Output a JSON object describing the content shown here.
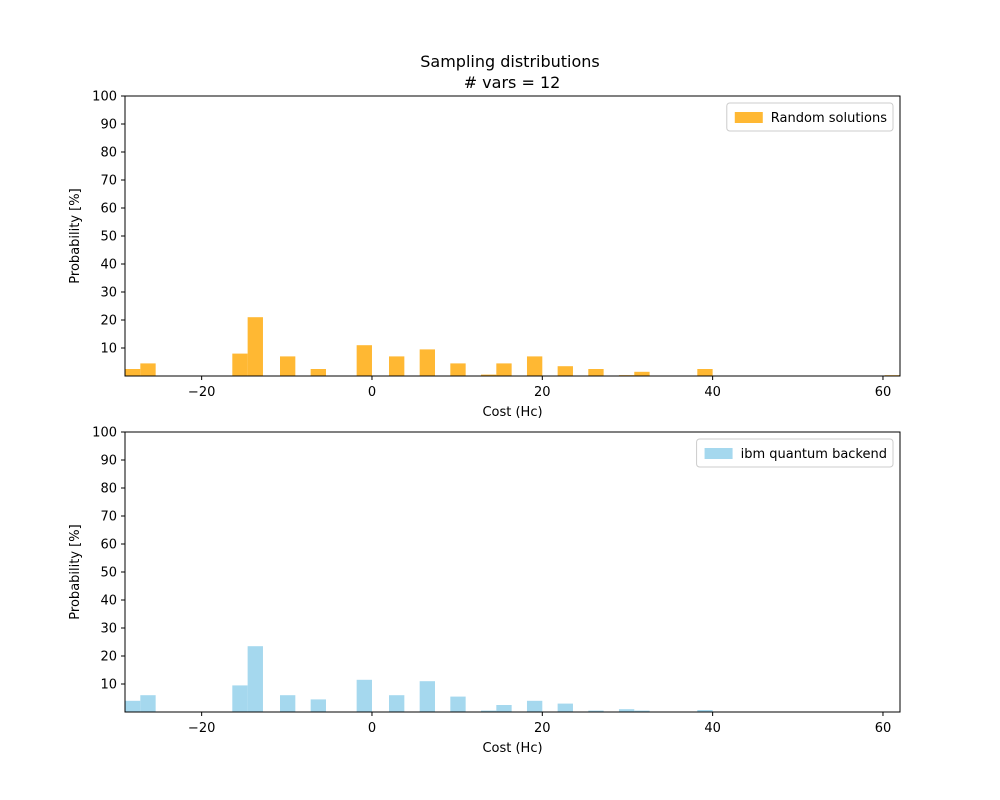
{
  "figure": {
    "title_line1": "Sampling distributions",
    "title_line2": "# vars = 12"
  },
  "chart_data": [
    {
      "type": "bar",
      "xlabel": "Cost (Hc)",
      "ylabel": "Probability [%]",
      "xlim": [
        -29,
        62
      ],
      "ylim": [
        0,
        100
      ],
      "xticks": [
        -20,
        0,
        20,
        40,
        60
      ],
      "yticks": [
        10,
        20,
        30,
        40,
        50,
        60,
        70,
        80,
        90,
        100
      ],
      "legend_position": "top-right",
      "bin_width": 1.8,
      "series": [
        {
          "name": "Random solutions",
          "color": "#ffb833",
          "x": [
            -28.1,
            -26.3,
            -15.5,
            -13.7,
            -9.9,
            -6.3,
            -0.9,
            2.9,
            6.5,
            10.1,
            13.7,
            15.5,
            19.1,
            22.7,
            26.3,
            29.9,
            31.7,
            39.1,
            61.1
          ],
          "values": [
            2.5,
            4.5,
            8,
            21,
            7,
            2.5,
            11,
            7,
            9.5,
            4.5,
            0.5,
            4.5,
            7,
            3.5,
            2.5,
            0.3,
            1.5,
            2.5,
            0.3
          ]
        }
      ]
    },
    {
      "type": "bar",
      "xlabel": "Cost (Hc)",
      "ylabel": "Probability [%]",
      "xlim": [
        -29,
        62
      ],
      "ylim": [
        0,
        100
      ],
      "xticks": [
        -20,
        0,
        20,
        40,
        60
      ],
      "yticks": [
        10,
        20,
        30,
        40,
        50,
        60,
        70,
        80,
        90,
        100
      ],
      "legend_position": "top-right",
      "bin_width": 1.8,
      "series": [
        {
          "name": "ibm quantum backend",
          "color": "#a5d8ee",
          "x": [
            -28.1,
            -26.3,
            -15.5,
            -13.7,
            -9.9,
            -6.3,
            -0.9,
            2.9,
            6.5,
            10.1,
            13.7,
            15.5,
            19.1,
            22.7,
            26.3,
            29.9,
            31.7,
            39.1
          ],
          "values": [
            4,
            6,
            9.5,
            23.5,
            6,
            4.5,
            11.5,
            6,
            11,
            5.5,
            0.5,
            2.5,
            4,
            3,
            0.5,
            1,
            0.5,
            0.7
          ]
        }
      ]
    }
  ]
}
